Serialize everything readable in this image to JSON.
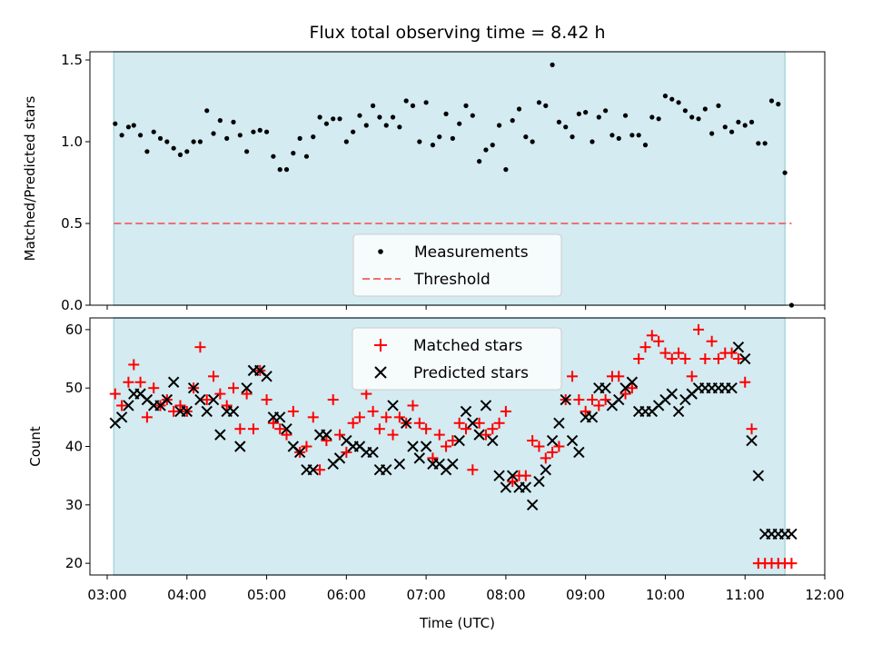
{
  "colors": {
    "shade": "#d3ebf1",
    "shade_edge": "#a9d4df",
    "measurement": "#000000",
    "threshold": "#f07070",
    "matched": "#ff0000",
    "predicted": "#000000"
  },
  "chart_data": [
    {
      "type": "scatter",
      "title": "Flux total observing time = 8.42 h",
      "xlabel": "",
      "ylabel": "Matched/Predicted stars",
      "xlim": [
        "02:47",
        "12:00"
      ],
      "ylim": [
        0,
        1.55
      ],
      "yticks": [
        "0.0",
        "0.5",
        "1.0",
        "1.5"
      ],
      "shaded_interval": [
        "03:05",
        "11:30"
      ],
      "legend": {
        "position": "lower center",
        "items": [
          "Measurements",
          "Threshold"
        ]
      },
      "threshold": {
        "name": "Threshold",
        "y": 0.5,
        "x": [
          "03:05",
          "11:35"
        ]
      },
      "series": [
        {
          "name": "Measurements",
          "x": [
            "03:06",
            "03:11",
            "03:16",
            "03:20",
            "03:25",
            "03:30",
            "03:35",
            "03:40",
            "03:45",
            "03:50",
            "03:55",
            "04:00",
            "04:05",
            "04:10",
            "04:15",
            "04:20",
            "04:25",
            "04:30",
            "04:35",
            "04:40",
            "04:45",
            "04:50",
            "04:55",
            "05:00",
            "05:05",
            "05:10",
            "05:15",
            "05:20",
            "05:25",
            "05:30",
            "05:35",
            "05:40",
            "05:45",
            "05:50",
            "05:55",
            "06:00",
            "06:05",
            "06:10",
            "06:15",
            "06:20",
            "06:25",
            "06:30",
            "06:35",
            "06:40",
            "06:45",
            "06:50",
            "06:55",
            "07:00",
            "07:05",
            "07:10",
            "07:15",
            "07:20",
            "07:25",
            "07:30",
            "07:35",
            "07:40",
            "07:45",
            "07:50",
            "07:55",
            "08:00",
            "08:05",
            "08:10",
            "08:15",
            "08:20",
            "08:25",
            "08:30",
            "08:35",
            "08:40",
            "08:45",
            "08:50",
            "08:55",
            "09:00",
            "09:05",
            "09:10",
            "09:15",
            "09:20",
            "09:25",
            "09:30",
            "09:35",
            "09:40",
            "09:45",
            "09:50",
            "09:55",
            "10:00",
            "10:05",
            "10:10",
            "10:15",
            "10:20",
            "10:25",
            "10:30",
            "10:35",
            "10:40",
            "10:45",
            "10:50",
            "10:55",
            "11:00",
            "11:05",
            "11:10",
            "11:15",
            "11:20",
            "11:25",
            "11:30",
            "11:35"
          ],
          "y": [
            1.11,
            1.04,
            1.09,
            1.1,
            1.04,
            0.94,
            1.06,
            1.02,
            1.0,
            0.96,
            0.92,
            0.94,
            1.0,
            1.0,
            1.19,
            1.05,
            1.13,
            1.02,
            1.12,
            1.04,
            0.94,
            1.06,
            1.07,
            1.06,
            0.91,
            0.83,
            0.83,
            0.93,
            1.02,
            0.91,
            1.03,
            1.15,
            1.11,
            1.14,
            1.14,
            1.0,
            1.06,
            1.16,
            1.1,
            1.22,
            1.15,
            1.1,
            1.15,
            1.09,
            1.25,
            1.22,
            1.0,
            1.24,
            0.98,
            1.03,
            1.17,
            1.02,
            1.11,
            1.22,
            1.16,
            0.88,
            0.95,
            0.98,
            1.1,
            0.83,
            1.13,
            1.2,
            1.03,
            1.0,
            1.24,
            1.22,
            1.47,
            1.12,
            1.09,
            1.03,
            1.17,
            1.18,
            1.0,
            1.15,
            1.19,
            1.04,
            1.02,
            1.16,
            1.04,
            1.04,
            0.98,
            1.15,
            1.14,
            1.28,
            1.26,
            1.24,
            1.19,
            1.15,
            1.14,
            1.2,
            1.05,
            1.22,
            1.09,
            1.06,
            1.12,
            1.1,
            1.12,
            0.99,
            0.99,
            1.25,
            1.23,
            0.81,
            0.0
          ]
        }
      ]
    },
    {
      "type": "scatter",
      "title": "",
      "xlabel": "Time (UTC)",
      "ylabel": "Count",
      "xlim": [
        "02:47",
        "12:00"
      ],
      "ylim": [
        18,
        62
      ],
      "yticks": [
        "20",
        "30",
        "40",
        "50",
        "60"
      ],
      "xticks": [
        "03:00",
        "04:00",
        "05:00",
        "06:00",
        "07:00",
        "08:00",
        "09:00",
        "10:00",
        "11:00",
        "12:00"
      ],
      "shaded_interval": [
        "03:05",
        "11:30"
      ],
      "legend": {
        "position": "upper center",
        "items": [
          "Matched stars",
          "Predicted stars"
        ]
      },
      "series": [
        {
          "name": "Matched stars",
          "x": [
            "03:06",
            "03:11",
            "03:16",
            "03:20",
            "03:25",
            "03:30",
            "03:35",
            "03:40",
            "03:45",
            "03:50",
            "03:55",
            "04:00",
            "04:05",
            "04:10",
            "04:15",
            "04:20",
            "04:25",
            "04:30",
            "04:35",
            "04:40",
            "04:45",
            "04:50",
            "04:55",
            "05:00",
            "05:05",
            "05:10",
            "05:15",
            "05:20",
            "05:25",
            "05:30",
            "05:35",
            "05:40",
            "05:45",
            "05:50",
            "05:55",
            "06:00",
            "06:05",
            "06:10",
            "06:15",
            "06:20",
            "06:25",
            "06:30",
            "06:35",
            "06:40",
            "06:45",
            "06:50",
            "06:55",
            "07:00",
            "07:05",
            "07:10",
            "07:15",
            "07:20",
            "07:25",
            "07:30",
            "07:35",
            "07:40",
            "07:45",
            "07:50",
            "07:55",
            "08:00",
            "08:05",
            "08:10",
            "08:15",
            "08:20",
            "08:25",
            "08:30",
            "08:35",
            "08:40",
            "08:45",
            "08:50",
            "08:55",
            "09:00",
            "09:05",
            "09:10",
            "09:15",
            "09:20",
            "09:25",
            "09:30",
            "09:35",
            "09:40",
            "09:45",
            "09:50",
            "09:55",
            "10:00",
            "10:05",
            "10:10",
            "10:15",
            "10:20",
            "10:25",
            "10:30",
            "10:35",
            "10:40",
            "10:45",
            "10:50",
            "10:55",
            "11:00",
            "11:05",
            "11:10",
            "11:15",
            "11:20",
            "11:25",
            "11:30",
            "11:35"
          ],
          "y": [
            49,
            47,
            51,
            54,
            51,
            45,
            50,
            47,
            48,
            46,
            47,
            46,
            50,
            57,
            48,
            52,
            49,
            47,
            50,
            43,
            49,
            43,
            53,
            48,
            44,
            43,
            42,
            46,
            39,
            40,
            45,
            36,
            41,
            48,
            42,
            39,
            44,
            45,
            49,
            46,
            43,
            45,
            42,
            45,
            44,
            47,
            44,
            43,
            38,
            42,
            40,
            41,
            44,
            43,
            36,
            44,
            42,
            43,
            44,
            46,
            34,
            35,
            35,
            41,
            40,
            38,
            39,
            40,
            48,
            52,
            48,
            46,
            48,
            47,
            48,
            52,
            52,
            49,
            50,
            55,
            57,
            59,
            58,
            56,
            55,
            56,
            55,
            52,
            60,
            55,
            58,
            55,
            56,
            56,
            55,
            51,
            43,
            20,
            20,
            20,
            20,
            20,
            20
          ]
        },
        {
          "name": "Predicted stars",
          "x": [
            "03:06",
            "03:11",
            "03:16",
            "03:20",
            "03:25",
            "03:30",
            "03:35",
            "03:40",
            "03:45",
            "03:50",
            "03:55",
            "04:00",
            "04:05",
            "04:10",
            "04:15",
            "04:20",
            "04:25",
            "04:30",
            "04:35",
            "04:40",
            "04:45",
            "04:50",
            "04:55",
            "05:00",
            "05:05",
            "05:10",
            "05:15",
            "05:20",
            "05:25",
            "05:30",
            "05:35",
            "05:40",
            "05:45",
            "05:50",
            "05:55",
            "06:00",
            "06:05",
            "06:10",
            "06:15",
            "06:20",
            "06:25",
            "06:30",
            "06:35",
            "06:40",
            "06:45",
            "06:50",
            "06:55",
            "07:00",
            "07:05",
            "07:10",
            "07:15",
            "07:20",
            "07:25",
            "07:30",
            "07:35",
            "07:40",
            "07:45",
            "07:50",
            "07:55",
            "08:00",
            "08:05",
            "08:10",
            "08:15",
            "08:20",
            "08:25",
            "08:30",
            "08:35",
            "08:40",
            "08:45",
            "08:50",
            "08:55",
            "09:00",
            "09:05",
            "09:10",
            "09:15",
            "09:20",
            "09:25",
            "09:30",
            "09:35",
            "09:40",
            "09:45",
            "09:50",
            "09:55",
            "10:00",
            "10:05",
            "10:10",
            "10:15",
            "10:20",
            "10:25",
            "10:30",
            "10:35",
            "10:40",
            "10:45",
            "10:50",
            "10:55",
            "11:00",
            "11:05",
            "11:10",
            "11:15",
            "11:20",
            "11:25",
            "11:30",
            "11:35"
          ],
          "y": [
            44,
            45,
            47,
            49,
            49,
            48,
            47,
            47,
            48,
            51,
            46,
            46,
            50,
            48,
            46,
            48,
            42,
            46,
            46,
            40,
            50,
            53,
            53,
            52,
            45,
            45,
            43,
            40,
            39,
            36,
            36,
            42,
            42,
            37,
            38,
            41,
            40,
            40,
            39,
            39,
            36,
            36,
            47,
            37,
            44,
            40,
            38,
            40,
            37,
            37,
            36,
            37,
            41,
            46,
            44,
            42,
            47,
            41,
            35,
            33,
            35,
            33,
            33,
            30,
            34,
            36,
            41,
            44,
            48,
            41,
            39,
            45,
            45,
            50,
            50,
            47,
            48,
            50,
            51,
            46,
            46,
            46,
            47,
            48,
            49,
            46,
            48,
            49,
            50,
            50,
            50,
            50,
            50,
            50,
            57,
            55,
            41,
            35,
            25,
            25,
            25,
            25,
            25
          ]
        }
      ]
    }
  ]
}
